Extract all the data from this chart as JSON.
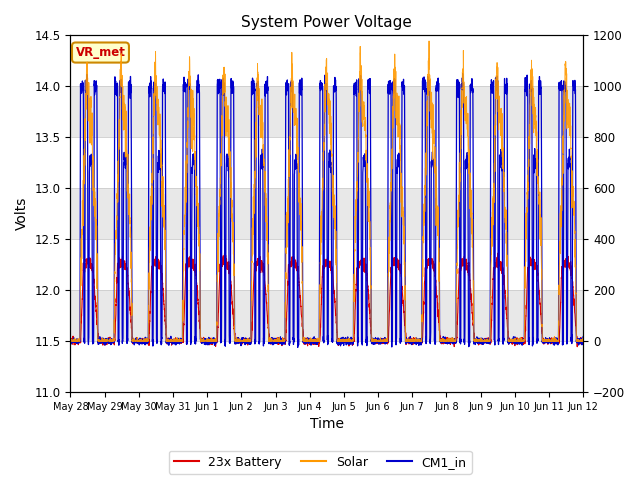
{
  "title": "System Power Voltage",
  "xlabel": "Time",
  "ylabel_left": "Volts",
  "ylim_left": [
    11.0,
    14.5
  ],
  "ylim_right": [
    -200,
    1200
  ],
  "annotation_text": "VR_met",
  "annotation_color": "#cc0000",
  "annotation_bg": "#ffffcc",
  "annotation_border": "#cc8800",
  "line_battery_color": "#dd0000",
  "line_solar_color": "#ff9900",
  "line_cm1_color": "#0000cc",
  "legend_labels": [
    "23x Battery",
    "Solar",
    "CM1_in"
  ],
  "x_tick_labels": [
    "May 28",
    "May 29",
    "May 30",
    "May 31",
    "Jun 1",
    "Jun 2",
    "Jun 3",
    "Jun 4",
    "Jun 5",
    "Jun 6",
    "Jun 7",
    "Jun 8",
    "Jun 9",
    "Jun 10",
    "Jun 11",
    "Jun 12"
  ],
  "grid_color": "#cccccc",
  "bg_color": "#e8e8e8",
  "plot_bg": "#ffffff",
  "yticks_left": [
    11.0,
    11.5,
    12.0,
    12.5,
    13.0,
    13.5,
    14.0,
    14.5
  ],
  "yticks_right": [
    -200,
    0,
    200,
    400,
    600,
    800,
    1000,
    1200
  ],
  "n_days": 15
}
